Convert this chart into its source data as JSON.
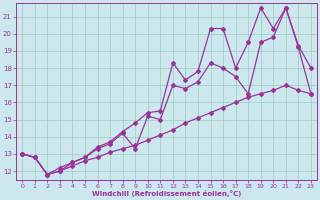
{
  "xlabel": "Windchill (Refroidissement éolien,°C)",
  "background_color": "#cce8ee",
  "grid_color": "#99ccbb",
  "line_color": "#993399",
  "xlim": [
    -0.5,
    23.5
  ],
  "ylim": [
    11.5,
    21.8
  ],
  "yticks": [
    12,
    13,
    14,
    15,
    16,
    17,
    18,
    19,
    20,
    21
  ],
  "xticks": [
    0,
    1,
    2,
    3,
    4,
    5,
    6,
    7,
    8,
    9,
    10,
    11,
    12,
    13,
    14,
    15,
    16,
    17,
    18,
    19,
    20,
    21,
    22,
    23
  ],
  "line1_x": [
    0,
    1,
    2,
    3,
    4,
    5,
    6,
    7,
    8,
    9,
    10,
    11,
    12,
    13,
    14,
    15,
    16,
    17,
    18,
    19,
    20,
    21,
    22,
    23
  ],
  "line1_y": [
    13.0,
    12.8,
    11.8,
    12.0,
    12.3,
    12.6,
    12.8,
    13.1,
    13.3,
    13.5,
    13.8,
    14.1,
    14.4,
    14.8,
    15.1,
    15.4,
    15.7,
    16.0,
    16.3,
    16.5,
    16.7,
    17.0,
    16.7,
    16.5
  ],
  "line2_x": [
    0,
    1,
    2,
    3,
    4,
    5,
    6,
    7,
    8,
    9,
    10,
    11,
    12,
    13,
    14,
    15,
    16,
    17,
    18,
    19,
    20,
    21,
    22,
    23
  ],
  "line2_y": [
    13.0,
    12.8,
    11.8,
    12.2,
    12.5,
    12.8,
    13.3,
    13.6,
    14.2,
    13.3,
    15.2,
    15.0,
    17.0,
    16.8,
    17.2,
    18.3,
    18.0,
    17.5,
    16.5,
    19.5,
    19.8,
    21.5,
    19.2,
    16.5
  ],
  "line3_x": [
    0,
    1,
    2,
    3,
    4,
    5,
    6,
    7,
    8,
    9,
    10,
    11,
    12,
    13,
    14,
    15,
    16,
    17,
    18,
    19,
    20,
    21,
    22,
    23
  ],
  "line3_y": [
    13.0,
    12.8,
    11.8,
    12.0,
    12.5,
    12.8,
    13.4,
    13.7,
    14.3,
    14.8,
    15.4,
    15.5,
    18.3,
    17.3,
    17.8,
    20.3,
    20.3,
    18.0,
    19.5,
    21.5,
    20.3,
    21.5,
    19.3,
    18.0
  ]
}
